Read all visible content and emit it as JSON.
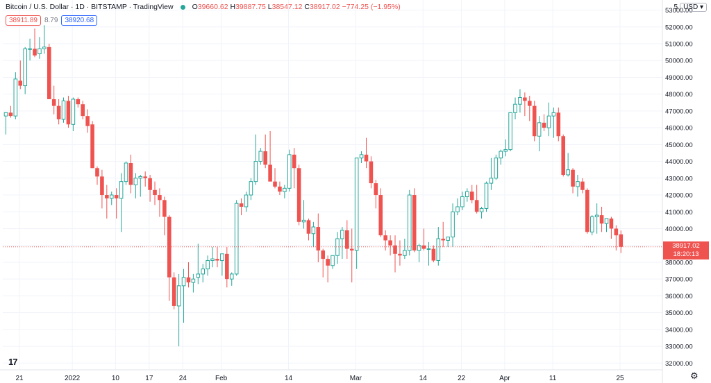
{
  "header": {
    "title": "Bitcoin / U.S. Dollar · 1D · BITSTAMP · TradingView",
    "open_label": "O",
    "open": "39660.62",
    "high_label": "H",
    "high": "39887.75",
    "low_label": "L",
    "low": "38547.12",
    "close_label": "C",
    "close": "38917.02",
    "change": "−774.25 (−1.95%)"
  },
  "quotes": {
    "bid": "38911.89",
    "spread": "8.79",
    "ask": "38920.68"
  },
  "currency": {
    "prefix": "5",
    "label": "USD",
    "arrow": "▾"
  },
  "price_badge": {
    "price": "38917.02",
    "countdown": "18:20:13"
  },
  "colors": {
    "up": "#26a69a",
    "down": "#ef5350",
    "grid": "#f0f3fa"
  },
  "icons": {
    "logo": "tradingview-logo-icon",
    "settings": "gear-icon"
  },
  "logo_text": "17",
  "chart_data": {
    "type": "candlestick",
    "y_ticks": [
      32000,
      33000,
      34000,
      35000,
      36000,
      37000,
      38000,
      39000,
      40000,
      41000,
      42000,
      43000,
      44000,
      45000,
      46000,
      47000,
      48000,
      49000,
      50000,
      51000,
      52000,
      53000
    ],
    "y_tick_labels": [
      "32000.00",
      "33000.00",
      "34000.00",
      "35000.00",
      "36000.00",
      "37000.00",
      "38000.00",
      "39000.00",
      "40000.00",
      "41000.00",
      "42000.00",
      "43000.00",
      "44000.00",
      "45000.00",
      "46000.00",
      "47000.00",
      "48000.00",
      "49000.00",
      "50000.00",
      "51000.00",
      "52000.00",
      "53000.00"
    ],
    "ylim": [
      31600,
      53600
    ],
    "x_tick_labels": [
      "21",
      "2022",
      "10",
      "17",
      "24",
      "Feb",
      "14",
      "Mar",
      "14",
      "22",
      "Apr",
      "11",
      "25"
    ],
    "x_tick_index": [
      0,
      11,
      20,
      27,
      34,
      42,
      56,
      70,
      84,
      92,
      101,
      111,
      125
    ],
    "last_price": 38917.02,
    "candles": [
      [
        46700,
        46900,
        45600,
        46900
      ],
      [
        46900,
        47300,
        46600,
        46700
      ],
      [
        46700,
        49300,
        46500,
        48900
      ],
      [
        48800,
        50000,
        48300,
        48500
      ],
      [
        48500,
        50800,
        48000,
        50700
      ],
      [
        50700,
        51300,
        50000,
        50700
      ],
      [
        50700,
        51900,
        50200,
        50300
      ],
      [
        50400,
        51400,
        50100,
        50700
      ],
      [
        50700,
        52100,
        50400,
        50800
      ],
      [
        50800,
        51000,
        47900,
        47700
      ],
      [
        47700,
        48500,
        46800,
        47300
      ],
      [
        47300,
        47700,
        46200,
        46500
      ],
      [
        46500,
        47800,
        46300,
        47600
      ],
      [
        47600,
        47900,
        46000,
        46200
      ],
      [
        46200,
        47800,
        45800,
        47700
      ],
      [
        47700,
        47800,
        47200,
        47400
      ],
      [
        47400,
        47600,
        46500,
        46700
      ],
      [
        46700,
        47100,
        45700,
        46100
      ],
      [
        46200,
        46400,
        43600,
        43600
      ],
      [
        43600,
        43700,
        42600,
        43100
      ],
      [
        43100,
        43500,
        41200,
        42000
      ],
      [
        42000,
        42600,
        40600,
        41800
      ],
      [
        41800,
        42200,
        41400,
        42000
      ],
      [
        42000,
        42400,
        40600,
        41800
      ],
      [
        41800,
        43300,
        39800,
        42800
      ],
      [
        42800,
        44000,
        42600,
        43900
      ],
      [
        43900,
        44400,
        42100,
        42600
      ],
      [
        42600,
        43300,
        41800,
        43000
      ],
      [
        43000,
        43200,
        41900,
        43100
      ],
      [
        43100,
        43400,
        42500,
        43000
      ],
      [
        43000,
        43200,
        41600,
        42300
      ],
      [
        42300,
        42800,
        41400,
        42000
      ],
      [
        42000,
        42400,
        40700,
        41700
      ],
      [
        41700,
        41900,
        39600,
        40700
      ],
      [
        40700,
        40800,
        35700,
        37100
      ],
      [
        37100,
        37400,
        35200,
        35400
      ],
      [
        35400,
        37300,
        33000,
        36600
      ],
      [
        36600,
        37600,
        34400,
        37100
      ],
      [
        37100,
        38000,
        36500,
        36800
      ],
      [
        36800,
        37300,
        36200,
        37000
      ],
      [
        37100,
        39100,
        36700,
        37300
      ],
      [
        37300,
        37900,
        36800,
        37600
      ],
      [
        37600,
        38400,
        37200,
        38100
      ],
      [
        38100,
        38900,
        37700,
        38200
      ],
      [
        38200,
        38900,
        37700,
        38100
      ],
      [
        38100,
        38300,
        37200,
        38500
      ],
      [
        38500,
        38900,
        36500,
        37000
      ],
      [
        37000,
        37400,
        36600,
        37300
      ],
      [
        37300,
        41700,
        37200,
        41500
      ],
      [
        41500,
        41800,
        40800,
        41300
      ],
      [
        41300,
        42200,
        41000,
        42000
      ],
      [
        42000,
        43000,
        41700,
        42800
      ],
      [
        42800,
        45600,
        42600,
        44000
      ],
      [
        44000,
        44800,
        43800,
        44600
      ],
      [
        44600,
        45600,
        43600,
        43800
      ],
      [
        43800,
        45800,
        42900,
        42800
      ],
      [
        42800,
        43600,
        42400,
        42500
      ],
      [
        42500,
        42800,
        42000,
        42200
      ],
      [
        42200,
        42600,
        41800,
        42400
      ],
      [
        42400,
        44700,
        42200,
        44400
      ],
      [
        44400,
        44800,
        42400,
        43600
      ],
      [
        43600,
        43800,
        40200,
        40400
      ],
      [
        40400,
        41700,
        40000,
        40500
      ],
      [
        40500,
        40600,
        39300,
        39700
      ],
      [
        39700,
        40400,
        38900,
        40100
      ],
      [
        40100,
        40900,
        38000,
        38700
      ],
      [
        38700,
        38800,
        37100,
        38200
      ],
      [
        38200,
        38400,
        36800,
        37800
      ],
      [
        37800,
        38400,
        37600,
        38400
      ],
      [
        38400,
        39800,
        37900,
        39400
      ],
      [
        39400,
        40100,
        38200,
        39900
      ],
      [
        39900,
        40500,
        38200,
        38800
      ],
      [
        38800,
        40000,
        36800,
        38700
      ],
      [
        38700,
        44200,
        37600,
        44200
      ],
      [
        44200,
        44600,
        43900,
        44400
      ],
      [
        44400,
        45400,
        43600,
        44000
      ],
      [
        44000,
        44300,
        42400,
        42700
      ],
      [
        42700,
        42900,
        41200,
        42000
      ],
      [
        42000,
        42400,
        39500,
        39600
      ],
      [
        39600,
        39900,
        38700,
        39300
      ],
      [
        39300,
        39600,
        38400,
        39000
      ],
      [
        39000,
        39600,
        37400,
        38500
      ],
      [
        38500,
        39300,
        37800,
        38400
      ],
      [
        38400,
        39400,
        38200,
        38700
      ],
      [
        38700,
        42300,
        38400,
        42000
      ],
      [
        42000,
        42400,
        38600,
        38700
      ],
      [
        38700,
        39100,
        38000,
        39000
      ],
      [
        39000,
        40000,
        38700,
        38800
      ],
      [
        38800,
        39200,
        37800,
        38800
      ],
      [
        38800,
        39000,
        38000,
        38100
      ],
      [
        38100,
        40100,
        37800,
        39400
      ],
      [
        39400,
        40400,
        38900,
        39300
      ],
      [
        39300,
        39500,
        38900,
        39500
      ],
      [
        39500,
        41500,
        38900,
        41000
      ],
      [
        41000,
        41800,
        40800,
        41300
      ],
      [
        41300,
        42200,
        41100,
        41900
      ],
      [
        41900,
        42400,
        41600,
        42200
      ],
      [
        42200,
        42600,
        41500,
        41700
      ],
      [
        41700,
        42600,
        40900,
        41000
      ],
      [
        41000,
        41300,
        40600,
        41200
      ],
      [
        41200,
        42800,
        41000,
        42700
      ],
      [
        42700,
        44200,
        42300,
        43000
      ],
      [
        43000,
        44400,
        42900,
        44200
      ],
      [
        44200,
        44700,
        43800,
        44600
      ],
      [
        44600,
        45300,
        44300,
        44700
      ],
      [
        44700,
        46800,
        44600,
        46900
      ],
      [
        46900,
        47800,
        46500,
        47400
      ],
      [
        47400,
        48300,
        46900,
        47800
      ],
      [
        47800,
        48100,
        46700,
        47600
      ],
      [
        47600,
        47900,
        46400,
        47300
      ],
      [
        47300,
        47600,
        45200,
        45500
      ],
      [
        45500,
        46700,
        44600,
        46300
      ],
      [
        46300,
        46800,
        45800,
        46000
      ],
      [
        46000,
        47500,
        45500,
        46700
      ],
      [
        46700,
        47200,
        45400,
        46900
      ],
      [
        46900,
        47200,
        45200,
        45500
      ],
      [
        45500,
        45600,
        43100,
        43200
      ],
      [
        43200,
        44500,
        43100,
        43500
      ],
      [
        43500,
        43600,
        42100,
        42500
      ],
      [
        42500,
        43200,
        41900,
        42800
      ],
      [
        42800,
        43000,
        42100,
        42300
      ],
      [
        42300,
        42400,
        39700,
        39800
      ],
      [
        39800,
        40800,
        39600,
        40700
      ],
      [
        40700,
        41500,
        39700,
        40800
      ],
      [
        40800,
        41300,
        39800,
        40300
      ],
      [
        40300,
        40500,
        39800,
        40600
      ],
      [
        40600,
        40700,
        39400,
        40000
      ],
      [
        40000,
        40200,
        38700,
        39600
      ],
      [
        39660.62,
        39887.75,
        38547.12,
        38917.02
      ]
    ]
  }
}
